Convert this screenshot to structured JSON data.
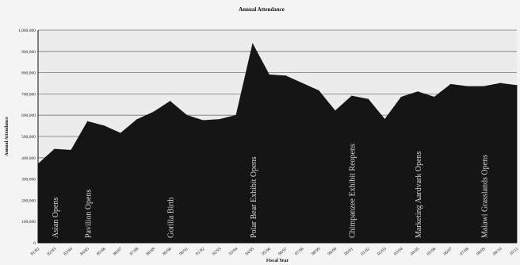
{
  "chart_data": {
    "type": "area",
    "title": "Annual Attendance",
    "xlabel": "Fiscal Year",
    "ylabel": "Annual Attendance",
    "ylim": [
      0,
      1000000
    ],
    "yticks": [
      "0",
      "100,000",
      "200,000",
      "300,000",
      "400,000",
      "500,000",
      "600,000",
      "700,000",
      "800,000",
      "900,000",
      "1,000,000"
    ],
    "categories": [
      "81/82",
      "82/83",
      "83/84",
      "84/85",
      "85/86",
      "86/87",
      "87/88",
      "88/89",
      "89/90",
      "90/91",
      "91/92",
      "92/93",
      "93/94",
      "94/95",
      "95/96",
      "96/97",
      "97/98",
      "98/99",
      "99/00",
      "00/01",
      "01/02",
      "02/03",
      "03/04",
      "04/05",
      "05/06",
      "06/07",
      "07/08",
      "08/09",
      "09/10",
      "10/11"
    ],
    "series": [
      {
        "values": [
          370000,
          440000,
          435000,
          570000,
          550000,
          515000,
          580000,
          615000,
          665000,
          600000,
          575000,
          580000,
          600000,
          935000,
          790000,
          785000,
          750000,
          715000,
          620000,
          690000,
          675000,
          580000,
          685000,
          710000,
          685000,
          745000,
          735000,
          735000,
          750000,
          740000
        ]
      }
    ],
    "annotations": [
      {
        "text": "Asian Opens",
        "category_index": 1
      },
      {
        "text": "Pavilion Opens",
        "category_index": 3
      },
      {
        "text": "Gorilla Birth",
        "category_index": 8
      },
      {
        "text": "Polar Bear Exhibit Opens",
        "category_index": 13
      },
      {
        "text": "Chimpanzee Exhibit Reopens",
        "category_index": 19
      },
      {
        "text": "Marketing Aardvark Opens",
        "category_index": 23
      },
      {
        "text": "Malawi Grasslands Opens",
        "category_index": 27
      }
    ],
    "grid": true,
    "colors": {
      "area": "#151515",
      "plot_background": "#ececec",
      "gridline": "#777777",
      "annotation_text": "#d8d8d8"
    }
  }
}
